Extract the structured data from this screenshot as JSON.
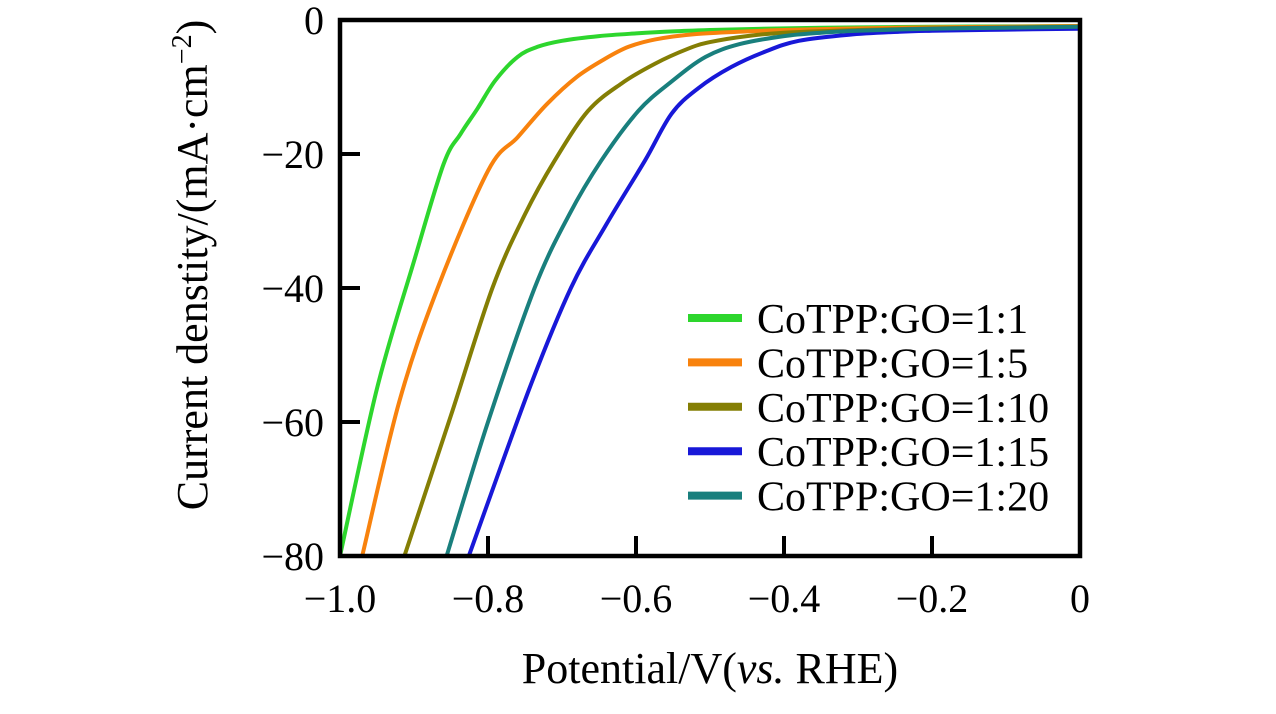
{
  "chart_data": {
    "type": "line",
    "title": "",
    "xlabel": "Potential/V(vs. RHE)",
    "ylabel": "Current denstity/(mA·cm−2)",
    "xlabel_parts": {
      "prefix": "Potential/V(",
      "italic": "vs.",
      "suffix": " RHE)"
    },
    "ylabel_parts": {
      "main": "Current denstity/(mA·cm",
      "sup": "−2",
      "close": ")"
    },
    "xlim": [
      -1.0,
      0
    ],
    "ylim": [
      -80,
      0
    ],
    "grid": false,
    "legend_position": "center-right",
    "frame": "full-box",
    "axis_color": "#000000",
    "x_ticks": [
      {
        "v": -1.0,
        "label": "−1.0"
      },
      {
        "v": -0.8,
        "label": "−0.8"
      },
      {
        "v": -0.6,
        "label": "−0.6"
      },
      {
        "v": -0.4,
        "label": "−0.4"
      },
      {
        "v": -0.2,
        "label": "−0.2"
      },
      {
        "v": 0,
        "label": "0"
      }
    ],
    "y_ticks": [
      {
        "v": 0,
        "label": "0"
      },
      {
        "v": -20,
        "label": "−20"
      },
      {
        "v": -40,
        "label": "−40"
      },
      {
        "v": -60,
        "label": "−60"
      },
      {
        "v": -80,
        "label": "−80"
      }
    ],
    "series": [
      {
        "name": "CoTPP:GO=1:1",
        "color": "#2dd62d",
        "points": [
          [
            0,
            -0.9
          ],
          [
            -0.1,
            -0.95
          ],
          [
            -0.2,
            -1.0
          ],
          [
            -0.3,
            -1.1
          ],
          [
            -0.4,
            -1.25
          ],
          [
            -0.5,
            -1.5
          ],
          [
            -0.55,
            -1.7
          ],
          [
            -0.6,
            -2.0
          ],
          [
            -0.65,
            -2.4
          ],
          [
            -0.7,
            -3.1
          ],
          [
            -0.733,
            -4.0
          ],
          [
            -0.76,
            -5.5
          ],
          [
            -0.79,
            -9.0
          ],
          [
            -0.814,
            -13.2
          ],
          [
            -0.837,
            -17.0
          ],
          [
            -0.86,
            -21.5
          ],
          [
            -0.9,
            -36.0
          ],
          [
            -0.95,
            -55.0
          ],
          [
            -1.0,
            -80.0
          ]
        ]
      },
      {
        "name": "CoTPP:GO=1:5",
        "color": "#f8820d",
        "points": [
          [
            0,
            -0.9
          ],
          [
            -0.1,
            -1.0
          ],
          [
            -0.2,
            -1.1
          ],
          [
            -0.3,
            -1.25
          ],
          [
            -0.4,
            -1.5
          ],
          [
            -0.45,
            -1.7
          ],
          [
            -0.52,
            -2.1
          ],
          [
            -0.574,
            -2.9
          ],
          [
            -0.61,
            -4.0
          ],
          [
            -0.642,
            -5.8
          ],
          [
            -0.68,
            -8.5
          ],
          [
            -0.72,
            -12.5
          ],
          [
            -0.76,
            -17.5
          ],
          [
            -0.8,
            -22.5
          ],
          [
            -0.868,
            -40.0
          ],
          [
            -0.92,
            -57.0
          ],
          [
            -0.97,
            -80.0
          ]
        ]
      },
      {
        "name": "CoTPP:GO=1:10",
        "color": "#847e04",
        "points": [
          [
            0,
            -1.0
          ],
          [
            -0.1,
            -1.1
          ],
          [
            -0.2,
            -1.25
          ],
          [
            -0.3,
            -1.5
          ],
          [
            -0.4,
            -1.9
          ],
          [
            -0.45,
            -2.4
          ],
          [
            -0.5,
            -3.3
          ],
          [
            -0.53,
            -4.3
          ],
          [
            -0.574,
            -6.5
          ],
          [
            -0.62,
            -9.5
          ],
          [
            -0.665,
            -13.6
          ],
          [
            -0.71,
            -21.0
          ],
          [
            -0.75,
            -29.0
          ],
          [
            -0.794,
            -40.0
          ],
          [
            -0.85,
            -59.0
          ],
          [
            -0.913,
            -80.0
          ]
        ]
      },
      {
        "name": "CoTPP:GO=1:15",
        "color": "#1818d8",
        "points": [
          [
            0,
            -1.3
          ],
          [
            -0.108,
            -1.45
          ],
          [
            -0.2,
            -1.6
          ],
          [
            -0.244,
            -1.75
          ],
          [
            -0.312,
            -2.2
          ],
          [
            -0.38,
            -3.1
          ],
          [
            -0.425,
            -4.7
          ],
          [
            -0.471,
            -7.0
          ],
          [
            -0.516,
            -10.2
          ],
          [
            -0.552,
            -14.0
          ],
          [
            -0.588,
            -21.0
          ],
          [
            -0.64,
            -30.5
          ],
          [
            -0.688,
            -40.0
          ],
          [
            -0.744,
            -55.0
          ],
          [
            -0.826,
            -80.0
          ]
        ]
      },
      {
        "name": "CoTPP:GO=1:20",
        "color": "#197f7d",
        "points": [
          [
            0,
            -1.0
          ],
          [
            -0.1,
            -1.15
          ],
          [
            -0.2,
            -1.3
          ],
          [
            -0.3,
            -1.6
          ],
          [
            -0.35,
            -1.9
          ],
          [
            -0.4,
            -2.4
          ],
          [
            -0.46,
            -3.6
          ],
          [
            -0.506,
            -5.5
          ],
          [
            -0.552,
            -9.2
          ],
          [
            -0.597,
            -13.6
          ],
          [
            -0.647,
            -21.0
          ],
          [
            -0.69,
            -29.0
          ],
          [
            -0.737,
            -40.0
          ],
          [
            -0.8,
            -60.0
          ],
          [
            -0.856,
            -80.0
          ]
        ]
      }
    ]
  }
}
